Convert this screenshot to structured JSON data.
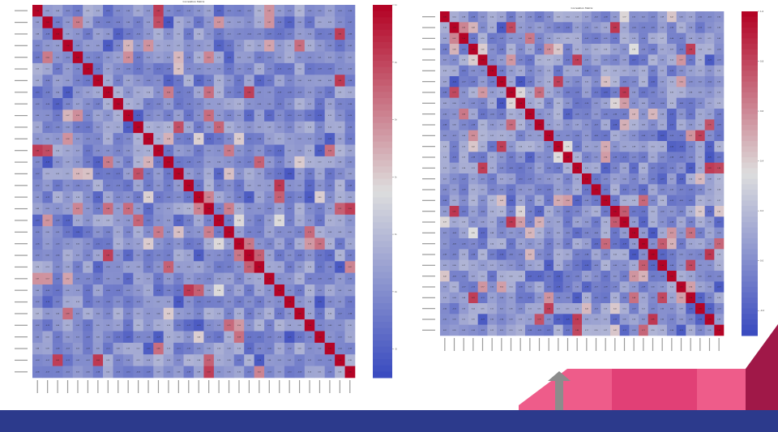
{
  "chart_data": [
    {
      "type": "heatmap",
      "title": "Correlation Matrix",
      "size": 32,
      "colorbar_ticks": [
        "1.0",
        "0.8",
        "0.6",
        "0.4",
        "0.2",
        "0.0",
        "-0.2"
      ],
      "vmin": -0.3,
      "vmax": 1.0,
      "colors": {
        "low": "#3b4cc0",
        "mid": "#dddddd",
        "high": "#b40426"
      }
    },
    {
      "type": "heatmap",
      "title": "Correlation Matrix",
      "size": 30,
      "colorbar_ticks": [
        "1.0",
        "0.8",
        "0.6",
        "0.4",
        "0.2",
        "0.0",
        "-0.2"
      ],
      "vmin": -0.3,
      "vmax": 1.0,
      "colors": {
        "low": "#3b4cc0",
        "mid": "#dddddd",
        "high": "#b40426"
      }
    }
  ],
  "decoration": {
    "bar_color": "#2c3a8c",
    "ribbon_colors": [
      "#e9457a",
      "#f06290",
      "#b0194d"
    ],
    "arrow_color": "#8c8c8c"
  }
}
